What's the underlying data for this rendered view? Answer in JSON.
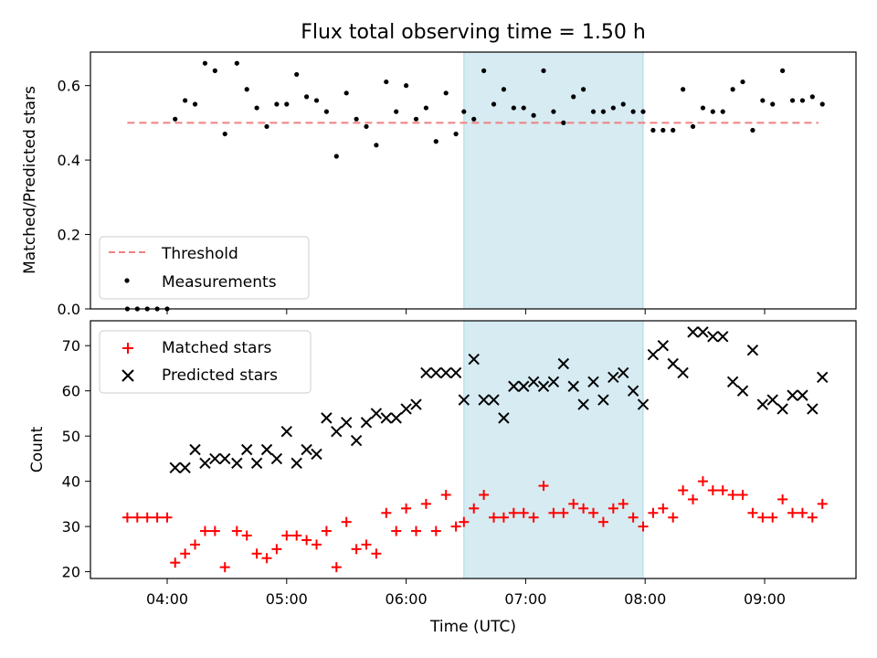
{
  "chart_data": [
    {
      "type": "scatter",
      "title": "Flux total observing time = 1.50 h",
      "xlabel": "",
      "ylabel": "Matched/Predicted stars",
      "ylim": [
        0,
        0.69
      ],
      "yticks": [
        "0.0",
        "0.2",
        "0.4",
        "0.6"
      ],
      "xticks": [
        "04:00",
        "05:00",
        "06:00",
        "07:00",
        "08:00",
        "09:00"
      ],
      "highlight_span": [
        "06:29",
        "07:59"
      ],
      "highlight_color": "#add8e6",
      "legend_position": "lower-left",
      "threshold": {
        "name": "Threshold",
        "y": 0.5,
        "x_start": "03:40",
        "x_end": "09:27",
        "color": "#f08080",
        "style": "dashed"
      },
      "series": [
        {
          "name": "Measurements",
          "color": "#000000",
          "marker": "dot",
          "points": [
            [
              "03:40",
              0.0
            ],
            [
              "03:45",
              0.0
            ],
            [
              "03:50",
              0.0
            ],
            [
              "03:55",
              0.0
            ],
            [
              "04:00",
              0.0
            ],
            [
              "04:04",
              0.51
            ],
            [
              "04:09",
              0.56
            ],
            [
              "04:14",
              0.55
            ],
            [
              "04:19",
              0.66
            ],
            [
              "04:24",
              0.64
            ],
            [
              "04:29",
              0.47
            ],
            [
              "04:35",
              0.66
            ],
            [
              "04:40",
              0.59
            ],
            [
              "04:45",
              0.54
            ],
            [
              "04:50",
              0.49
            ],
            [
              "04:55",
              0.55
            ],
            [
              "05:00",
              0.55
            ],
            [
              "05:05",
              0.63
            ],
            [
              "05:10",
              0.57
            ],
            [
              "05:15",
              0.56
            ],
            [
              "05:20",
              0.53
            ],
            [
              "05:25",
              0.41
            ],
            [
              "05:30",
              0.58
            ],
            [
              "05:35",
              0.51
            ],
            [
              "05:40",
              0.49
            ],
            [
              "05:45",
              0.44
            ],
            [
              "05:50",
              0.61
            ],
            [
              "05:55",
              0.53
            ],
            [
              "06:00",
              0.6
            ],
            [
              "06:05",
              0.51
            ],
            [
              "06:10",
              0.54
            ],
            [
              "06:15",
              0.45
            ],
            [
              "06:20",
              0.58
            ],
            [
              "06:25",
              0.47
            ],
            [
              "06:29",
              0.53
            ],
            [
              "06:34",
              0.51
            ],
            [
              "06:39",
              0.64
            ],
            [
              "06:44",
              0.55
            ],
            [
              "06:49",
              0.59
            ],
            [
              "06:54",
              0.54
            ],
            [
              "06:59",
              0.54
            ],
            [
              "07:04",
              0.52
            ],
            [
              "07:09",
              0.64
            ],
            [
              "07:14",
              0.53
            ],
            [
              "07:19",
              0.5
            ],
            [
              "07:24",
              0.57
            ],
            [
              "07:29",
              0.59
            ],
            [
              "07:34",
              0.53
            ],
            [
              "07:39",
              0.53
            ],
            [
              "07:44",
              0.54
            ],
            [
              "07:49",
              0.55
            ],
            [
              "07:54",
              0.53
            ],
            [
              "07:59",
              0.53
            ],
            [
              "08:04",
              0.48
            ],
            [
              "08:09",
              0.48
            ],
            [
              "08:14",
              0.48
            ],
            [
              "08:19",
              0.59
            ],
            [
              "08:24",
              0.49
            ],
            [
              "08:29",
              0.54
            ],
            [
              "08:34",
              0.53
            ],
            [
              "08:39",
              0.53
            ],
            [
              "08:44",
              0.59
            ],
            [
              "08:49",
              0.61
            ],
            [
              "08:54",
              0.48
            ],
            [
              "08:59",
              0.56
            ],
            [
              "09:04",
              0.55
            ],
            [
              "09:09",
              0.64
            ],
            [
              "09:14",
              0.56
            ],
            [
              "09:19",
              0.56
            ],
            [
              "09:24",
              0.57
            ],
            [
              "09:29",
              0.55
            ]
          ]
        }
      ]
    },
    {
      "type": "scatter",
      "title": "",
      "xlabel": "Time (UTC)",
      "ylabel": "Count",
      "ylim": [
        18.5,
        75.5
      ],
      "yticks": [
        "20",
        "30",
        "40",
        "50",
        "60",
        "70"
      ],
      "xticks": [
        "04:00",
        "05:00",
        "06:00",
        "07:00",
        "08:00",
        "09:00"
      ],
      "highlight_span": [
        "06:29",
        "07:59"
      ],
      "highlight_color": "#add8e6",
      "legend_position": "upper-left",
      "series": [
        {
          "name": "Matched stars",
          "color": "#ff0000",
          "marker": "plus",
          "points": [
            [
              "03:40",
              32
            ],
            [
              "03:45",
              32
            ],
            [
              "03:50",
              32
            ],
            [
              "03:55",
              32
            ],
            [
              "04:00",
              32
            ],
            [
              "04:04",
              22
            ],
            [
              "04:09",
              24
            ],
            [
              "04:14",
              26
            ],
            [
              "04:19",
              29
            ],
            [
              "04:24",
              29
            ],
            [
              "04:29",
              21
            ],
            [
              "04:35",
              29
            ],
            [
              "04:40",
              28
            ],
            [
              "04:45",
              24
            ],
            [
              "04:50",
              23
            ],
            [
              "04:55",
              25
            ],
            [
              "05:00",
              28
            ],
            [
              "05:05",
              28
            ],
            [
              "05:10",
              27
            ],
            [
              "05:15",
              26
            ],
            [
              "05:20",
              29
            ],
            [
              "05:25",
              21
            ],
            [
              "05:30",
              31
            ],
            [
              "05:35",
              25
            ],
            [
              "05:40",
              26
            ],
            [
              "05:45",
              24
            ],
            [
              "05:50",
              33
            ],
            [
              "05:55",
              29
            ],
            [
              "06:00",
              34
            ],
            [
              "06:05",
              29
            ],
            [
              "06:10",
              35
            ],
            [
              "06:15",
              29
            ],
            [
              "06:20",
              37
            ],
            [
              "06:25",
              30
            ],
            [
              "06:29",
              31
            ],
            [
              "06:34",
              34
            ],
            [
              "06:39",
              37
            ],
            [
              "06:44",
              32
            ],
            [
              "06:49",
              32
            ],
            [
              "06:54",
              33
            ],
            [
              "06:59",
              33
            ],
            [
              "07:04",
              32
            ],
            [
              "07:09",
              39
            ],
            [
              "07:14",
              33
            ],
            [
              "07:19",
              33
            ],
            [
              "07:24",
              35
            ],
            [
              "07:29",
              34
            ],
            [
              "07:34",
              33
            ],
            [
              "07:39",
              31
            ],
            [
              "07:44",
              34
            ],
            [
              "07:49",
              35
            ],
            [
              "07:54",
              32
            ],
            [
              "07:59",
              30
            ],
            [
              "08:04",
              33
            ],
            [
              "08:09",
              34
            ],
            [
              "08:14",
              32
            ],
            [
              "08:19",
              38
            ],
            [
              "08:24",
              36
            ],
            [
              "08:29",
              40
            ],
            [
              "08:34",
              38
            ],
            [
              "08:39",
              38
            ],
            [
              "08:44",
              37
            ],
            [
              "08:49",
              37
            ],
            [
              "08:54",
              33
            ],
            [
              "08:59",
              32
            ],
            [
              "09:04",
              32
            ],
            [
              "09:09",
              36
            ],
            [
              "09:14",
              33
            ],
            [
              "09:19",
              33
            ],
            [
              "09:24",
              32
            ],
            [
              "09:29",
              35
            ]
          ]
        },
        {
          "name": "Predicted stars",
          "color": "#000000",
          "marker": "x",
          "points": [
            [
              "04:04",
              43
            ],
            [
              "04:09",
              43
            ],
            [
              "04:14",
              47
            ],
            [
              "04:19",
              44
            ],
            [
              "04:24",
              45
            ],
            [
              "04:29",
              45
            ],
            [
              "04:35",
              44
            ],
            [
              "04:40",
              47
            ],
            [
              "04:45",
              44
            ],
            [
              "04:50",
              47
            ],
            [
              "04:55",
              45
            ],
            [
              "05:00",
              51
            ],
            [
              "05:05",
              44
            ],
            [
              "05:10",
              47
            ],
            [
              "05:15",
              46
            ],
            [
              "05:20",
              54
            ],
            [
              "05:25",
              51
            ],
            [
              "05:30",
              53
            ],
            [
              "05:35",
              49
            ],
            [
              "05:40",
              53
            ],
            [
              "05:45",
              55
            ],
            [
              "05:50",
              54
            ],
            [
              "05:55",
              54
            ],
            [
              "06:00",
              56
            ],
            [
              "06:05",
              57
            ],
            [
              "06:10",
              64
            ],
            [
              "06:15",
              64
            ],
            [
              "06:20",
              64
            ],
            [
              "06:25",
              64
            ],
            [
              "06:29",
              58
            ],
            [
              "06:34",
              67
            ],
            [
              "06:39",
              58
            ],
            [
              "06:44",
              58
            ],
            [
              "06:49",
              54
            ],
            [
              "06:54",
              61
            ],
            [
              "06:59",
              61
            ],
            [
              "07:04",
              62
            ],
            [
              "07:09",
              61
            ],
            [
              "07:14",
              62
            ],
            [
              "07:19",
              66
            ],
            [
              "07:24",
              61
            ],
            [
              "07:29",
              57
            ],
            [
              "07:34",
              62
            ],
            [
              "07:39",
              58
            ],
            [
              "07:44",
              63
            ],
            [
              "07:49",
              64
            ],
            [
              "07:54",
              60
            ],
            [
              "07:59",
              57
            ],
            [
              "08:04",
              68
            ],
            [
              "08:09",
              70
            ],
            [
              "08:14",
              66
            ],
            [
              "08:19",
              64
            ],
            [
              "08:24",
              73
            ],
            [
              "08:29",
              73
            ],
            [
              "08:34",
              72
            ],
            [
              "08:39",
              72
            ],
            [
              "08:44",
              62
            ],
            [
              "08:49",
              60
            ],
            [
              "08:54",
              69
            ],
            [
              "08:59",
              57
            ],
            [
              "09:04",
              58
            ],
            [
              "09:09",
              56
            ],
            [
              "09:14",
              59
            ],
            [
              "09:19",
              59
            ],
            [
              "09:24",
              56
            ],
            [
              "09:29",
              63
            ]
          ]
        }
      ]
    }
  ]
}
